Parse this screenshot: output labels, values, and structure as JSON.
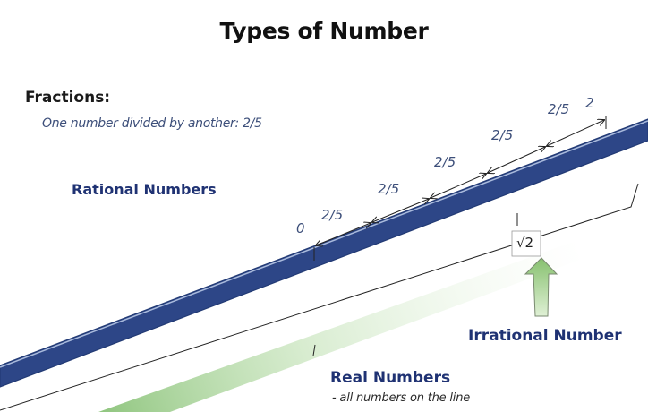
{
  "title": "Types of Number",
  "fractions": {
    "heading": "Fractions:",
    "description": "One number divided by another: 2/5"
  },
  "rational_label": "Rational Numbers",
  "number_line": {
    "start_label": "0",
    "end_label": "2",
    "step_labels": [
      "2/5",
      "2/5",
      "2/5",
      "2/5",
      "2/5"
    ]
  },
  "irrational": {
    "symbol": "√2",
    "label": "Irrational Number"
  },
  "real": {
    "label": "Real Numbers",
    "sublabel": "- all numbers on the line"
  },
  "colors": {
    "line_blue": "#4a6bb0",
    "label_navy": "#1f3273",
    "handwriting": "#3d4f7a",
    "arrow_green": "#8fc47a"
  }
}
